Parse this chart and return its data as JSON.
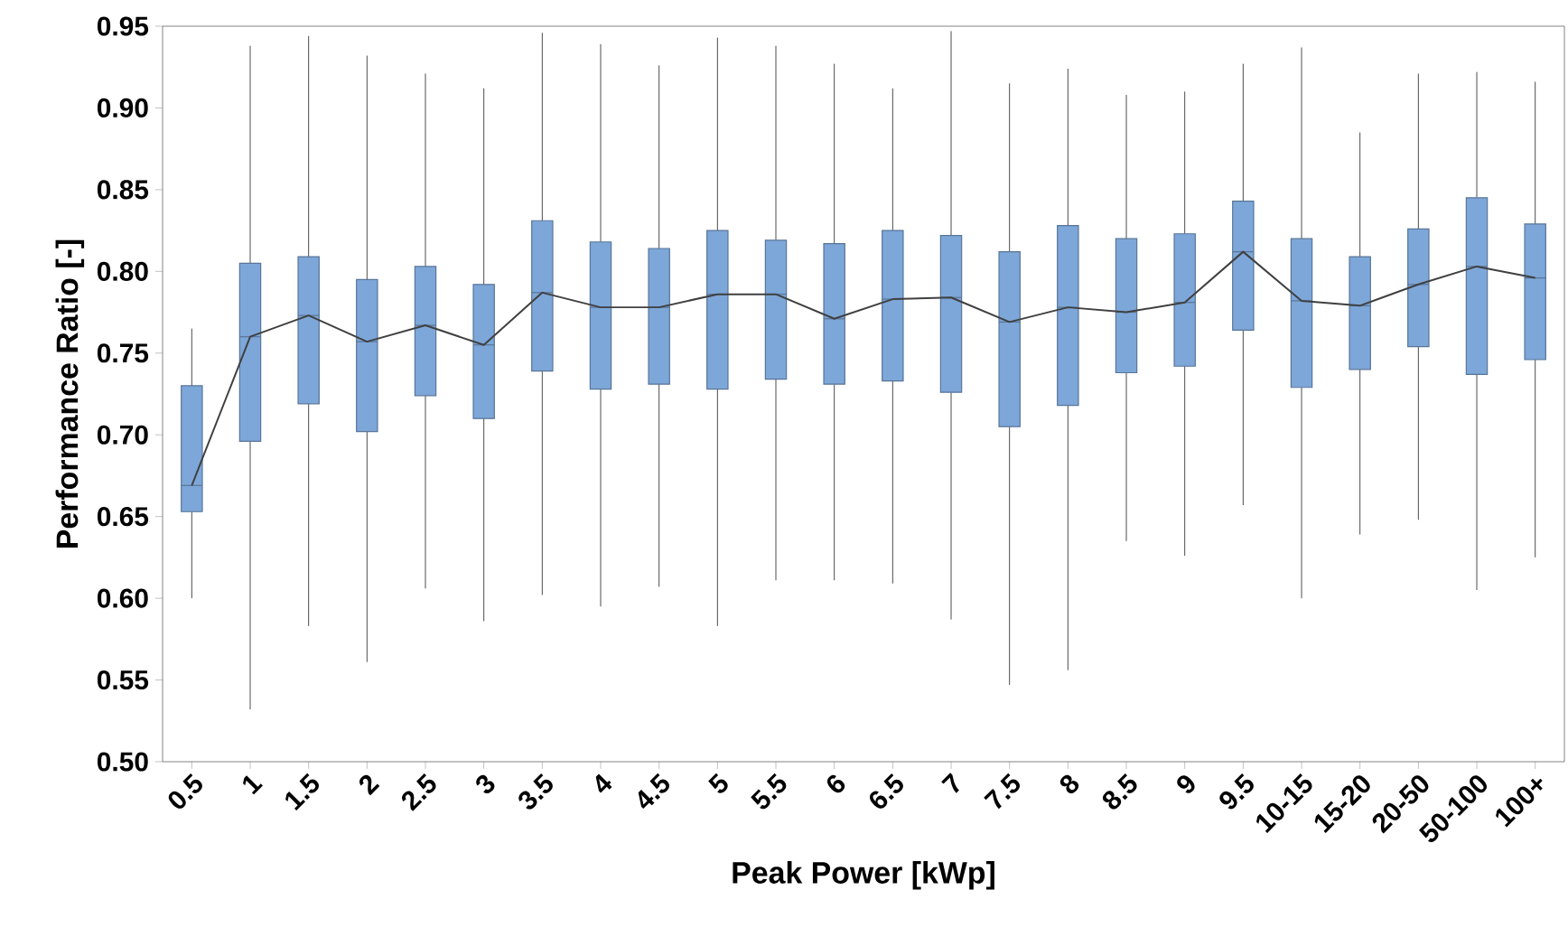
{
  "chart_data": {
    "type": "box",
    "xlabel": "Peak Power [kWp]",
    "ylabel": "Performance Ratio [-]",
    "categories": [
      "0.5",
      "1",
      "1.5",
      "2",
      "2.5",
      "3",
      "3.5",
      "4",
      "4.5",
      "5",
      "5.5",
      "6",
      "6.5",
      "7",
      "7.5",
      "8",
      "8.5",
      "9",
      "9.5",
      "10-15",
      "15-20",
      "20-50",
      "50-100",
      "100+"
    ],
    "ylim": [
      0.5,
      0.95
    ],
    "yticks": [
      {
        "value": 0.5,
        "label": "0.50"
      },
      {
        "value": 0.55,
        "label": "0.55"
      },
      {
        "value": 0.6,
        "label": "0.60"
      },
      {
        "value": 0.65,
        "label": "0.65"
      },
      {
        "value": 0.7,
        "label": "0.70"
      },
      {
        "value": 0.75,
        "label": "0.75"
      },
      {
        "value": 0.8,
        "label": "0.80"
      },
      {
        "value": 0.85,
        "label": "0.85"
      },
      {
        "value": 0.9,
        "label": "0.90"
      },
      {
        "value": 0.95,
        "label": "0.95"
      }
    ],
    "grid": false,
    "series": [
      {
        "color": "#7da7d9",
        "boxes": [
          {
            "low": 0.6,
            "q1": 0.653,
            "median": 0.669,
            "q3": 0.73,
            "high": 0.765
          },
          {
            "low": 0.532,
            "q1": 0.696,
            "median": 0.76,
            "q3": 0.805,
            "high": 0.938
          },
          {
            "low": 0.583,
            "q1": 0.719,
            "median": 0.773,
            "q3": 0.809,
            "high": 0.944
          },
          {
            "low": 0.561,
            "q1": 0.702,
            "median": 0.757,
            "q3": 0.795,
            "high": 0.932
          },
          {
            "low": 0.606,
            "q1": 0.724,
            "median": 0.767,
            "q3": 0.803,
            "high": 0.921
          },
          {
            "low": 0.586,
            "q1": 0.71,
            "median": 0.755,
            "q3": 0.792,
            "high": 0.912
          },
          {
            "low": 0.602,
            "q1": 0.739,
            "median": 0.787,
            "q3": 0.831,
            "high": 0.946
          },
          {
            "low": 0.595,
            "q1": 0.728,
            "median": 0.778,
            "q3": 0.818,
            "high": 0.939
          },
          {
            "low": 0.607,
            "q1": 0.731,
            "median": 0.778,
            "q3": 0.814,
            "high": 0.926
          },
          {
            "low": 0.583,
            "q1": 0.728,
            "median": 0.786,
            "q3": 0.825,
            "high": 0.943
          },
          {
            "low": 0.611,
            "q1": 0.734,
            "median": 0.786,
            "q3": 0.819,
            "high": 0.938
          },
          {
            "low": 0.611,
            "q1": 0.731,
            "median": 0.771,
            "q3": 0.817,
            "high": 0.927
          },
          {
            "low": 0.609,
            "q1": 0.733,
            "median": 0.783,
            "q3": 0.825,
            "high": 0.912
          },
          {
            "low": 0.587,
            "q1": 0.726,
            "median": 0.784,
            "q3": 0.822,
            "high": 0.947
          },
          {
            "low": 0.547,
            "q1": 0.705,
            "median": 0.769,
            "q3": 0.812,
            "high": 0.915
          },
          {
            "low": 0.556,
            "q1": 0.718,
            "median": 0.778,
            "q3": 0.828,
            "high": 0.924
          },
          {
            "low": 0.635,
            "q1": 0.738,
            "median": 0.775,
            "q3": 0.82,
            "high": 0.908
          },
          {
            "low": 0.626,
            "q1": 0.742,
            "median": 0.781,
            "q3": 0.823,
            "high": 0.91
          },
          {
            "low": 0.657,
            "q1": 0.764,
            "median": 0.812,
            "q3": 0.843,
            "high": 0.927
          },
          {
            "low": 0.6,
            "q1": 0.729,
            "median": 0.782,
            "q3": 0.82,
            "high": 0.937
          },
          {
            "low": 0.639,
            "q1": 0.74,
            "median": 0.779,
            "q3": 0.809,
            "high": 0.885
          },
          {
            "low": 0.648,
            "q1": 0.754,
            "median": 0.792,
            "q3": 0.826,
            "high": 0.921
          },
          {
            "low": 0.605,
            "q1": 0.737,
            "median": 0.803,
            "q3": 0.845,
            "high": 0.922
          },
          {
            "low": 0.625,
            "q1": 0.746,
            "median": 0.796,
            "q3": 0.829,
            "high": 0.916
          }
        ]
      },
      {
        "type": "line",
        "color": "#404040",
        "marker": "none",
        "line_style": "solid",
        "values": [
          0.669,
          0.76,
          0.773,
          0.757,
          0.767,
          0.755,
          0.787,
          0.778,
          0.778,
          0.786,
          0.786,
          0.771,
          0.783,
          0.784,
          0.769,
          0.778,
          0.775,
          0.781,
          0.812,
          0.782,
          0.779,
          0.792,
          0.803,
          0.796
        ]
      }
    ]
  }
}
